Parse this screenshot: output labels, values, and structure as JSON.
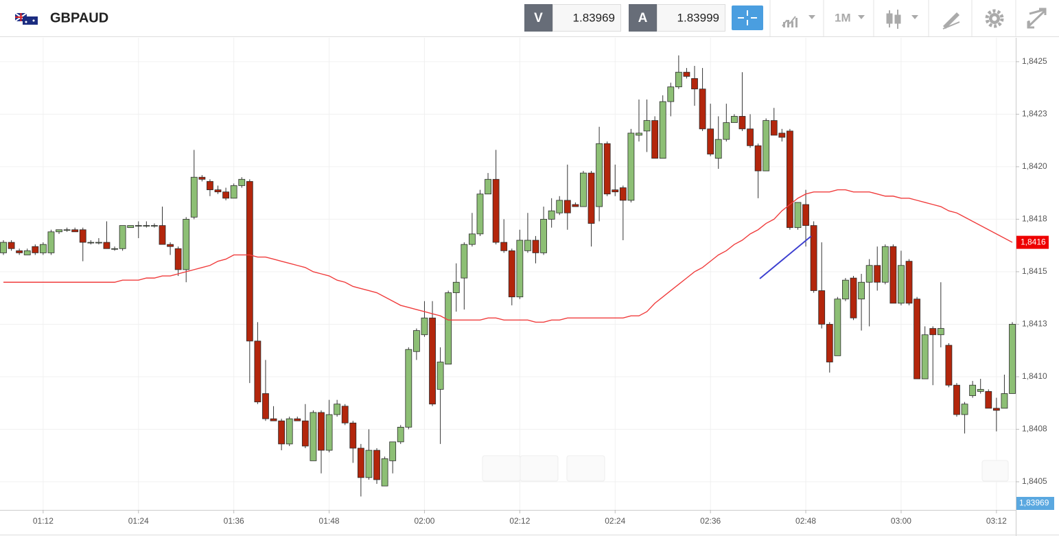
{
  "header": {
    "symbol": "GBPAUD",
    "bid_label": "V",
    "bid": 1.83969,
    "ask_label": "A",
    "ask": 1.83999,
    "timeframe": "1M"
  },
  "chart_data": {
    "type": "candlestick",
    "categories": [
      null,
      null,
      null,
      null,
      null,
      "01:12",
      null,
      null,
      null,
      null,
      null,
      null,
      null,
      null,
      null,
      null,
      null,
      "01:24",
      null,
      null,
      null,
      null,
      null,
      null,
      null,
      null,
      null,
      null,
      null,
      "01:36",
      null,
      null,
      null,
      null,
      null,
      null,
      null,
      null,
      null,
      null,
      null,
      "01:48",
      null,
      null,
      null,
      null,
      null,
      null,
      null,
      null,
      null,
      null,
      null,
      "02:00",
      null,
      null,
      null,
      null,
      null,
      null,
      null,
      null,
      null,
      null,
      null,
      "02:12",
      null,
      null,
      null,
      null,
      null,
      null,
      null,
      null,
      null,
      null,
      null,
      "02:24",
      null,
      null,
      null,
      null,
      null,
      null,
      null,
      null,
      null,
      null,
      null,
      "02:36",
      null,
      null,
      null,
      null,
      null,
      null,
      null,
      null,
      null,
      null,
      null,
      "02:48",
      null,
      null,
      null,
      null,
      null,
      null,
      null,
      null,
      null,
      null,
      null,
      "03:00",
      null,
      null,
      null,
      null,
      null,
      null,
      null,
      null,
      null,
      null,
      null,
      "03:12",
      null,
      null
    ],
    "open": [
      1.84159,
      1.84164,
      1.8416,
      1.84158,
      1.84162,
      1.84159,
      1.84159,
      1.84169,
      1.8417,
      1.8417,
      1.8417,
      1.84164,
      1.84164,
      1.84164,
      1.84161,
      1.84161,
      1.84171,
      1.84172,
      1.84172,
      1.84172,
      1.84172,
      1.84163,
      1.84161,
      1.84151,
      1.84176,
      1.84195,
      1.84193,
      1.84189,
      1.84188,
      1.84185,
      1.84191,
      1.84193,
      1.84117,
      1.84092,
      1.8408,
      1.84079,
      1.84068,
      1.8408,
      1.84079,
      1.8406,
      1.84083,
      1.84065,
      1.84082,
      1.84086,
      1.84078,
      1.84066,
      1.84052,
      1.84065,
      1.84048,
      1.8406,
      1.84069,
      1.84076,
      1.84112,
      1.8412,
      1.84128,
      1.84094,
      1.84106,
      1.8414,
      1.84147,
      1.84163,
      1.84168,
      1.84187,
      1.84194,
      1.84164,
      1.8416,
      1.84138,
      1.8416,
      1.84165,
      1.84159,
      1.84175,
      1.84178,
      1.84184,
      1.84182,
      1.84181,
      1.84197,
      1.84181,
      1.84211,
      1.84189,
      1.8419,
      1.84184,
      1.84215,
      1.84217,
      1.84222,
      1.84204,
      1.84231,
      1.84238,
      1.84245,
      1.84242,
      1.84237,
      1.84218,
      1.84204,
      1.84213,
      1.84221,
      1.84224,
      1.84218,
      1.8421,
      1.84198,
      1.84222,
      1.84216,
      1.84217,
      1.84171,
      1.84182,
      1.84172,
      1.84141,
      1.84125,
      1.8411,
      1.84137,
      1.84147,
      1.84137,
      1.84145,
      1.84153,
      1.84145,
      1.84162,
      1.84135,
      1.84155,
      1.84137,
      1.84099,
      1.84123,
      1.8412,
      1.84115,
      1.84096,
      1.84082,
      1.84091,
      1.84093,
      1.84093,
      1.84085,
      1.84085,
      1.84092
    ],
    "high": [
      1.84165,
      1.84165,
      1.84161,
      1.84161,
      1.84163,
      1.84164,
      1.8417,
      1.8417,
      1.84171,
      1.84171,
      1.84171,
      1.84165,
      1.84166,
      1.84174,
      1.84162,
      1.84172,
      1.84172,
      1.84174,
      1.84174,
      1.84173,
      1.84181,
      1.84164,
      1.84162,
      1.84176,
      1.84208,
      1.84196,
      1.84194,
      1.84191,
      1.8419,
      1.84192,
      1.84195,
      1.84194,
      1.84126,
      1.84108,
      1.84086,
      1.8408,
      1.84081,
      1.84081,
      1.84087,
      1.84084,
      1.84084,
      1.84089,
      1.84089,
      1.84087,
      1.84079,
      1.84068,
      1.84075,
      1.84066,
      1.84062,
      1.84069,
      1.84077,
      1.84114,
      1.84123,
      1.84136,
      1.84136,
      1.84114,
      1.84141,
      1.84154,
      1.84164,
      1.84178,
      1.84189,
      1.84197,
      1.84208,
      1.84175,
      1.84161,
      1.8417,
      1.84178,
      1.84167,
      1.84181,
      1.84185,
      1.84186,
      1.84201,
      1.84183,
      1.84198,
      1.84198,
      1.84219,
      1.84212,
      1.84201,
      1.84191,
      1.84218,
      1.84232,
      1.84232,
      1.84224,
      1.84234,
      1.8424,
      1.84253,
      1.84247,
      1.84248,
      1.84247,
      1.8423,
      1.84224,
      1.8423,
      1.84225,
      1.84245,
      1.84225,
      1.84211,
      1.84223,
      1.84228,
      1.84218,
      1.84218,
      1.84183,
      1.84189,
      1.84174,
      1.84164,
      1.84126,
      1.84138,
      1.84147,
      1.84148,
      1.84149,
      1.84156,
      1.84162,
      1.84163,
      1.84163,
      1.8416,
      1.84156,
      1.84138,
      1.84124,
      1.84124,
      1.84145,
      1.84116,
      1.84097,
      1.84088,
      1.84098,
      1.84099,
      1.84094,
      1.8409,
      1.84101,
      1.84126
    ],
    "low": [
      1.84158,
      1.8416,
      1.84158,
      1.84158,
      1.84158,
      1.84158,
      1.84158,
      1.84168,
      1.84169,
      1.84169,
      1.84155,
      1.84163,
      1.84163,
      1.84161,
      1.8416,
      1.8416,
      1.84171,
      1.84166,
      1.84171,
      1.84171,
      1.84163,
      1.84158,
      1.84148,
      1.84145,
      1.84175,
      1.84193,
      1.84186,
      1.84187,
      1.84184,
      1.84185,
      1.8419,
      1.84097,
      1.84087,
      1.84079,
      1.84079,
      1.84065,
      1.84067,
      1.84079,
      1.84066,
      1.8406,
      1.84054,
      1.84064,
      1.84081,
      1.84077,
      1.84059,
      1.84043,
      1.84051,
      1.84049,
      1.84048,
      1.84054,
      1.84068,
      1.84075,
      1.84108,
      1.84119,
      1.84086,
      1.84068,
      1.84106,
      1.84131,
      1.84132,
      1.84162,
      1.84167,
      1.84187,
      1.84163,
      1.84159,
      1.84134,
      1.84137,
      1.84159,
      1.84154,
      1.84158,
      1.84171,
      1.84177,
      1.8417,
      1.84181,
      1.84181,
      1.84162,
      1.84174,
      1.84186,
      1.84186,
      1.84165,
      1.84183,
      1.84212,
      1.84207,
      1.84204,
      1.84204,
      1.84224,
      1.84237,
      1.84242,
      1.84229,
      1.84217,
      1.84205,
      1.84199,
      1.84212,
      1.84221,
      1.84217,
      1.84209,
      1.84185,
      1.84198,
      1.84215,
      1.84212,
      1.8417,
      1.8417,
      1.84162,
      1.8414,
      1.84123,
      1.84102,
      1.8411,
      1.84136,
      1.84127,
      1.84122,
      1.84124,
      1.84141,
      1.84144,
      1.84135,
      1.84134,
      1.84134,
      1.84099,
      1.84099,
      1.84096,
      1.84114,
      1.84095,
      1.84081,
      1.84073,
      1.8409,
      1.84092,
      1.84085,
      1.84074,
      1.84085,
      1.84092
    ],
    "close": [
      1.84164,
      1.84161,
      1.84159,
      1.8416,
      1.84159,
      1.84163,
      1.84169,
      1.8417,
      1.8417,
      1.84169,
      1.84164,
      1.84164,
      1.84164,
      1.84161,
      1.84161,
      1.84172,
      1.84172,
      1.84172,
      1.84172,
      1.84172,
      1.84163,
      1.84162,
      1.84151,
      1.84175,
      1.84195,
      1.84194,
      1.84189,
      1.84188,
      1.84185,
      1.84191,
      1.84194,
      1.84117,
      1.84088,
      1.8408,
      1.84079,
      1.84068,
      1.8408,
      1.84079,
      1.84067,
      1.84083,
      1.84065,
      1.84082,
      1.84087,
      1.84078,
      1.84066,
      1.84052,
      1.84065,
      1.84051,
      1.84061,
      1.84069,
      1.84076,
      1.84113,
      1.84122,
      1.84128,
      1.84087,
      1.84107,
      1.8414,
      1.84145,
      1.84163,
      1.84168,
      1.84187,
      1.84194,
      1.84164,
      1.8416,
      1.84138,
      1.84165,
      1.84165,
      1.84159,
      1.84175,
      1.84179,
      1.84184,
      1.84178,
      1.84181,
      1.84197,
      1.84173,
      1.84211,
      1.84187,
      1.84188,
      1.84184,
      1.84216,
      1.84216,
      1.84222,
      1.84204,
      1.84231,
      1.84238,
      1.84245,
      1.84243,
      1.84237,
      1.84218,
      1.84206,
      1.84213,
      1.84221,
      1.84224,
      1.84218,
      1.8421,
      1.84198,
      1.84222,
      1.84215,
      1.84214,
      1.84171,
      1.84183,
      1.84172,
      1.84141,
      1.84125,
      1.84107,
      1.84137,
      1.84146,
      1.84128,
      1.84145,
      1.84153,
      1.84145,
      1.84162,
      1.84135,
      1.84153,
      1.84135,
      1.84099,
      1.8412,
      1.8412,
      1.84123,
      1.84096,
      1.84082,
      1.84087,
      1.84096,
      1.84094,
      1.84085,
      1.84084,
      1.84092,
      1.84125
    ],
    "up_color": "#8dbf75",
    "down_color": "#b3260c",
    "ma": {
      "color": "#f03c3c",
      "values": [
        1.84145,
        1.84145,
        1.84145,
        1.84145,
        1.84145,
        1.84145,
        1.84145,
        1.84145,
        1.84145,
        1.84145,
        1.84145,
        1.84145,
        1.84145,
        1.84145,
        1.84145,
        1.84146,
        1.84146,
        1.84146,
        1.84147,
        1.84147,
        1.84148,
        1.84148,
        1.84149,
        1.8415,
        1.84151,
        1.84152,
        1.84153,
        1.84155,
        1.84156,
        1.84158,
        1.84158,
        1.84158,
        1.84157,
        1.84157,
        1.84156,
        1.84155,
        1.84154,
        1.84153,
        1.84152,
        1.8415,
        1.84149,
        1.84148,
        1.84146,
        1.84145,
        1.84143,
        1.84142,
        1.84141,
        1.8414,
        1.84138,
        1.84136,
        1.84134,
        1.84133,
        1.84132,
        1.84131,
        1.8413,
        1.84129,
        1.84127,
        1.84127,
        1.84127,
        1.84127,
        1.84127,
        1.84128,
        1.84128,
        1.84127,
        1.84127,
        1.84127,
        1.84127,
        1.84126,
        1.84126,
        1.84127,
        1.84127,
        1.84128,
        1.84128,
        1.84128,
        1.84128,
        1.84128,
        1.84128,
        1.84128,
        1.84128,
        1.84129,
        1.84129,
        1.84131,
        1.84135,
        1.84138,
        1.84141,
        1.84144,
        1.84147,
        1.8415,
        1.84152,
        1.84155,
        1.84158,
        1.8416,
        1.84163,
        1.84165,
        1.84168,
        1.8417,
        1.84173,
        1.84175,
        1.84179,
        1.84182,
        1.84185,
        1.84187,
        1.84188,
        1.84188,
        1.84188,
        1.84189,
        1.84189,
        1.84188,
        1.84188,
        1.84188,
        1.84187,
        1.84186,
        1.84186,
        1.84185,
        1.84185,
        1.84184,
        1.84183,
        1.84182,
        1.84181,
        1.84179,
        1.84178,
        1.84176,
        1.84174,
        1.84172,
        1.8417,
        1.84168,
        1.84166,
        1.84164
      ]
    },
    "ma_label": "1,8416",
    "bid_marker_label": "1,83969",
    "ylim": [
      1.840366,
      1.842614
    ],
    "yticks": [
      {
        "value": 1.8425,
        "label": "1,8425"
      },
      {
        "value": 1.84225,
        "label": "1,8423"
      },
      {
        "value": 1.842,
        "label": "1,8420"
      },
      {
        "value": 1.84175,
        "label": "1,8418"
      },
      {
        "value": 1.8415,
        "label": "1,8415"
      },
      {
        "value": 1.84125,
        "label": "1,8413"
      },
      {
        "value": 1.841,
        "label": "1,8410"
      },
      {
        "value": 1.84075,
        "label": "1,8408"
      },
      {
        "value": 1.8405,
        "label": "1,8405"
      }
    ],
    "grid": true
  }
}
